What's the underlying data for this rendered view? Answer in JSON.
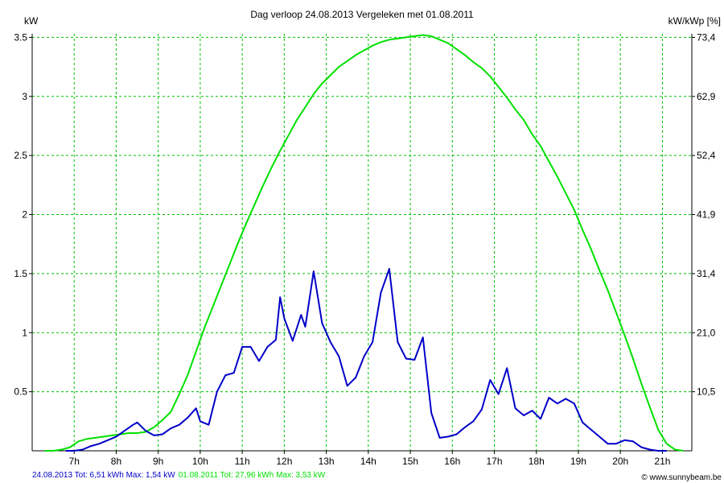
{
  "chart_data": {
    "type": "line",
    "title": "Dag  verloop 24.08.2013   Vergeleken met 01.08.2011",
    "ylabel_left": "kW",
    "ylabel_right": "kW/kWp [%]",
    "x_unit": "hour",
    "xlim": [
      6.0,
      21.7
    ],
    "x_tick_labels": [
      "7h",
      "8h",
      "9h",
      "10h",
      "11h",
      "12h",
      "13h",
      "14h",
      "15h",
      "16h",
      "17h",
      "18h",
      "19h",
      "20h",
      "21h"
    ],
    "x_tick_values": [
      7,
      8,
      9,
      10,
      11,
      12,
      13,
      14,
      15,
      16,
      17,
      18,
      19,
      20,
      21
    ],
    "ylim": [
      0,
      3.53
    ],
    "y_ticks_left": [
      0.5,
      1,
      1.5,
      2,
      2.5,
      3,
      3.5
    ],
    "y_tick_labels_left": [
      "0.5",
      "1",
      "1.5",
      "2",
      "2.5",
      "3",
      "3.5"
    ],
    "y_tick_labels_right": [
      "10,5",
      "21,0",
      "31,4",
      "41,9",
      "52,4",
      "62,9",
      "73,4"
    ],
    "grid": true,
    "series": [
      {
        "name": "01.08.2011",
        "color": "#00e000",
        "x": [
          6.3,
          6.5,
          6.7,
          6.9,
          7.1,
          7.3,
          7.5,
          7.7,
          7.9,
          8.1,
          8.3,
          8.5,
          8.7,
          8.9,
          9.1,
          9.3,
          9.5,
          9.7,
          9.9,
          10.1,
          10.3,
          10.5,
          10.7,
          10.9,
          11.1,
          11.3,
          11.5,
          11.7,
          11.9,
          12.1,
          12.3,
          12.5,
          12.7,
          12.9,
          13.1,
          13.3,
          13.5,
          13.7,
          13.9,
          14.1,
          14.3,
          14.5,
          14.7,
          14.9,
          15.1,
          15.3,
          15.5,
          15.7,
          15.9,
          16.1,
          16.3,
          16.5,
          16.7,
          16.9,
          17.1,
          17.3,
          17.5,
          17.7,
          17.9,
          18.1,
          18.3,
          18.5,
          18.7,
          18.9,
          19.1,
          19.3,
          19.5,
          19.7,
          19.9,
          20.1,
          20.3,
          20.5,
          20.7,
          20.9,
          21.1,
          21.3,
          21.5
        ],
        "values": [
          0,
          0,
          0.01,
          0.03,
          0.08,
          0.1,
          0.11,
          0.12,
          0.13,
          0.14,
          0.15,
          0.15,
          0.16,
          0.2,
          0.26,
          0.33,
          0.48,
          0.64,
          0.84,
          1.04,
          1.22,
          1.4,
          1.58,
          1.76,
          1.93,
          2.09,
          2.25,
          2.4,
          2.54,
          2.67,
          2.8,
          2.91,
          3.02,
          3.11,
          3.18,
          3.25,
          3.3,
          3.35,
          3.39,
          3.43,
          3.46,
          3.48,
          3.49,
          3.5,
          3.51,
          3.52,
          3.51,
          3.48,
          3.45,
          3.4,
          3.35,
          3.29,
          3.24,
          3.17,
          3.08,
          2.99,
          2.89,
          2.8,
          2.68,
          2.58,
          2.45,
          2.32,
          2.18,
          2.04,
          1.87,
          1.71,
          1.53,
          1.36,
          1.17,
          0.98,
          0.78,
          0.57,
          0.37,
          0.18,
          0.06,
          0.01,
          0
        ],
        "total_label": "01.08.2011 Tot: 27,96 kWh Max: 3,53 kW"
      },
      {
        "name": "24.08.2013",
        "color": "#0000c8",
        "x": [
          6.8,
          7.0,
          7.2,
          7.4,
          7.6,
          7.8,
          8.0,
          8.2,
          8.4,
          8.5,
          8.7,
          8.9,
          9.1,
          9.3,
          9.5,
          9.7,
          9.9,
          10.0,
          10.2,
          10.4,
          10.6,
          10.8,
          11.0,
          11.2,
          11.4,
          11.6,
          11.8,
          11.9,
          12.0,
          12.2,
          12.4,
          12.5,
          12.7,
          12.9,
          13.1,
          13.3,
          13.5,
          13.7,
          13.9,
          14.1,
          14.3,
          14.5,
          14.7,
          14.9,
          15.1,
          15.3,
          15.5,
          15.7,
          15.9,
          16.1,
          16.3,
          16.5,
          16.7,
          16.9,
          17.1,
          17.3,
          17.5,
          17.7,
          17.9,
          18.1,
          18.3,
          18.5,
          18.7,
          18.9,
          19.1,
          19.3,
          19.5,
          19.7,
          19.9,
          20.1,
          20.3,
          20.5,
          20.7,
          20.9,
          21.1
        ],
        "values": [
          0,
          0,
          0.01,
          0.04,
          0.06,
          0.09,
          0.12,
          0.17,
          0.22,
          0.24,
          0.17,
          0.13,
          0.14,
          0.19,
          0.22,
          0.28,
          0.36,
          0.25,
          0.22,
          0.5,
          0.64,
          0.66,
          0.88,
          0.88,
          0.76,
          0.88,
          0.94,
          1.3,
          1.12,
          0.93,
          1.15,
          1.05,
          1.52,
          1.08,
          0.92,
          0.8,
          0.55,
          0.62,
          0.8,
          0.92,
          1.34,
          1.54,
          0.92,
          0.78,
          0.77,
          0.96,
          0.32,
          0.11,
          0.12,
          0.14,
          0.2,
          0.25,
          0.35,
          0.6,
          0.48,
          0.7,
          0.36,
          0.3,
          0.34,
          0.27,
          0.45,
          0.4,
          0.44,
          0.4,
          0.24,
          0.18,
          0.12,
          0.06,
          0.06,
          0.09,
          0.08,
          0.03,
          0.01,
          0.0,
          0
        ],
        "total_label": "24.08.2013 Tot: 6,51 kWh Max: 1,54 kW"
      }
    ],
    "footer_left_label": "24.08.2013 Tot: 6,51 kWh Max: 1,54 kW",
    "footer_right_label": "01.08.2011 Tot: 27,96 kWh Max: 3,53 kW",
    "credit": "© www.sunnybeam.be"
  }
}
